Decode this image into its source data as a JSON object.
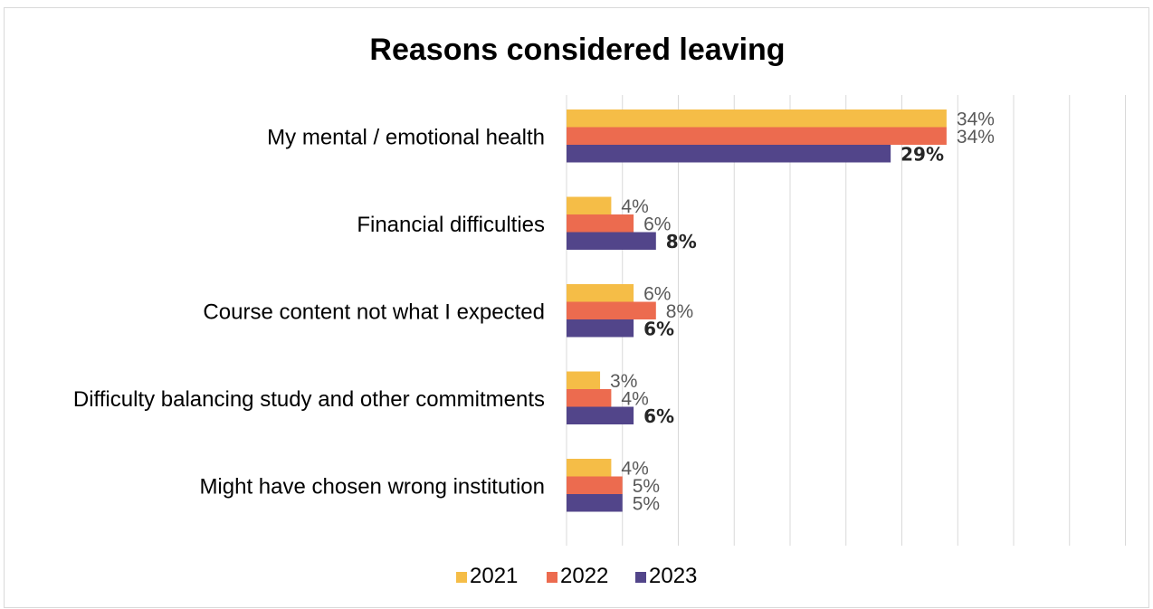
{
  "chart_data": {
    "type": "bar",
    "orientation": "horizontal",
    "title": "Reasons considered leaving",
    "categories": [
      "My mental / emotional health",
      "Financial difficulties",
      "Course content not what I expected",
      "Difficulty balancing study and other commitments",
      "Might have chosen wrong institution"
    ],
    "series": [
      {
        "name": "2021",
        "color": "#F5BD47",
        "values": [
          34,
          4,
          6,
          3,
          4
        ],
        "labels": [
          "34%",
          "4%",
          "6%",
          "3%",
          "4%"
        ]
      },
      {
        "name": "2022",
        "color": "#EC6B4F",
        "values": [
          34,
          6,
          8,
          4,
          5
        ],
        "labels": [
          "34%",
          "6%",
          "8%",
          "4%",
          "5%"
        ]
      },
      {
        "name": "2023",
        "color": "#52458A",
        "values": [
          29,
          8,
          6,
          6,
          5
        ],
        "labels": [
          "29%",
          "8%",
          "6%",
          "6%",
          "5%"
        ]
      }
    ],
    "bold_labels": [
      [
        false,
        false,
        true
      ],
      [
        false,
        false,
        true
      ],
      [
        false,
        false,
        true
      ],
      [
        false,
        false,
        true
      ],
      [
        false,
        false,
        false
      ]
    ],
    "xlim": [
      0,
      50
    ],
    "grid": true,
    "legend": "bottom-center"
  }
}
